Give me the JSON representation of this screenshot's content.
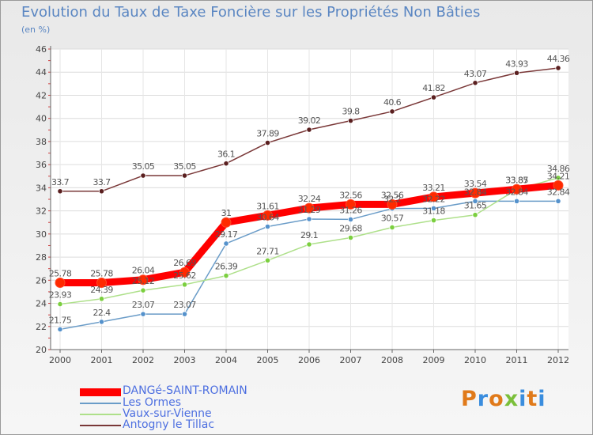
{
  "chart_data": {
    "type": "line",
    "title": "Evolution du Taux de Taxe Foncière sur les Propriétés Non Bâties",
    "ylabel": "(en %)",
    "xlabel": "",
    "categories": [
      "2000",
      "2001",
      "2002",
      "2003",
      "2004",
      "2005",
      "2006",
      "2007",
      "2008",
      "2009",
      "2010",
      "2011",
      "2012"
    ],
    "ylim": [
      20,
      46
    ],
    "yticks": [
      20,
      22,
      24,
      26,
      28,
      30,
      32,
      34,
      36,
      38,
      40,
      42,
      44,
      46
    ],
    "grid": true,
    "legend_position": "bottom-left",
    "series": [
      {
        "name": "DANGé-SAINT-ROMAIN",
        "color": "#ff0000",
        "marker": "#ff2a00",
        "values": [
          25.78,
          25.78,
          26.04,
          26.69,
          31,
          31.61,
          32.24,
          32.56,
          32.56,
          33.21,
          33.54,
          33.87,
          34.21
        ],
        "labels": [
          "25.78",
          "25.78",
          "26.04",
          "26.69",
          "31",
          "31.61",
          "32.24",
          "32.56",
          "32.56",
          "33.21",
          "33.54",
          "33.87",
          "34.21"
        ]
      },
      {
        "name": "Les Ormes",
        "color": "#6a9cc8",
        "marker": "#5592cc",
        "values": [
          21.75,
          22.4,
          23.07,
          23.07,
          29.17,
          30.64,
          31.29,
          31.26,
          32.2,
          32.22,
          32.84,
          32.84,
          32.84
        ],
        "labels": [
          "21.75",
          "22.4",
          "23.07",
          "23.07",
          "29.17",
          "30.64",
          "31.29",
          "31.26",
          "32.2",
          "32.22",
          "32.84",
          "32.84",
          "32.84"
        ]
      },
      {
        "name": "Vaux-sur-Vienne",
        "color": "#aee08a",
        "marker": "#7bcf3f",
        "values": [
          23.93,
          24.39,
          25.12,
          25.62,
          26.39,
          27.71,
          29.1,
          29.68,
          30.57,
          31.18,
          31.65,
          33.85,
          34.86
        ],
        "labels": [
          "23.93",
          "24.39",
          "25.12",
          "25.62",
          "26.39",
          "27.71",
          "29.1",
          "29.68",
          "30.57",
          "31.18",
          "31.65",
          "33.85",
          "34.86"
        ]
      },
      {
        "name": "Antogny le Tillac",
        "color": "#7a3838",
        "marker": "#5a1f1f",
        "values": [
          33.7,
          33.7,
          35.05,
          35.05,
          36.1,
          37.89,
          39.02,
          39.8,
          40.6,
          41.82,
          43.07,
          43.93,
          44.36
        ],
        "labels": [
          "33.7",
          "33.7",
          "35.05",
          "35.05",
          "36.1",
          "37.89",
          "39.02",
          "39.8",
          "40.6",
          "41.82",
          "43.07",
          "43.93",
          "44.36"
        ]
      }
    ]
  },
  "logo": {
    "text": "Proxiti",
    "letter_colors": [
      "#e07a1a",
      "#3a8dde",
      "#e07a1a",
      "#7bbf3a",
      "#3a8dde",
      "#e07a1a",
      "#3a8dde"
    ]
  }
}
